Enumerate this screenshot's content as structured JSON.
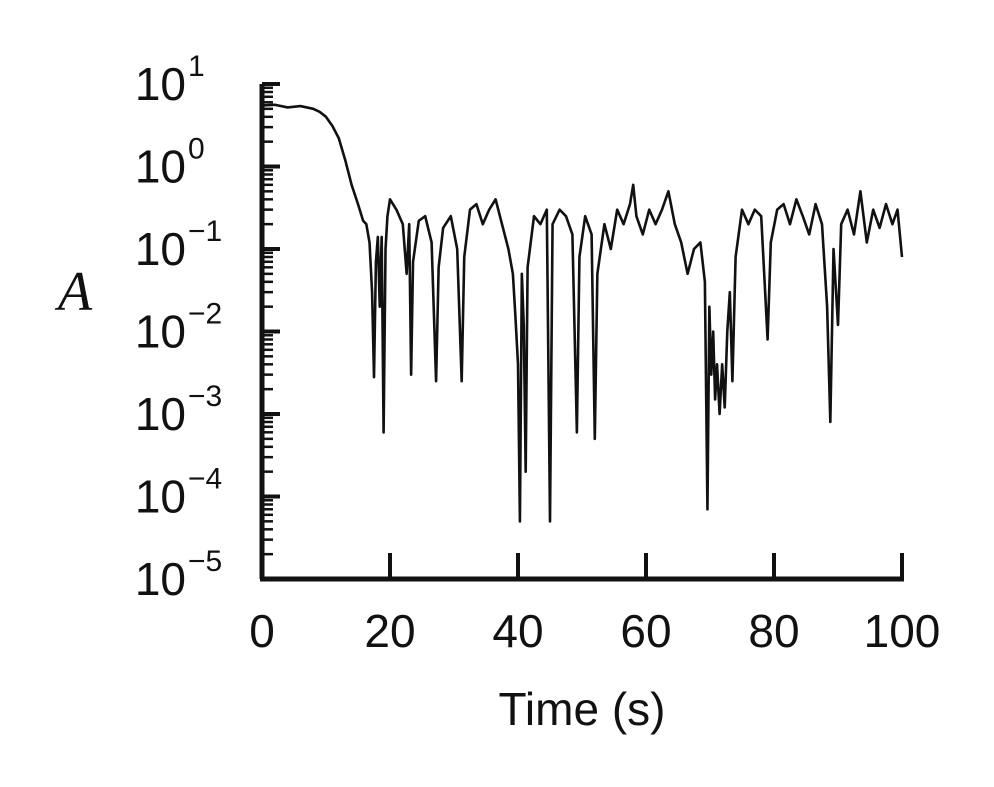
{
  "chart_data": {
    "type": "line",
    "title": "",
    "xlabel": "Time (s)",
    "ylabel": "A",
    "xlim": [
      0,
      100
    ],
    "ylim_log10": [
      -5,
      1
    ],
    "yscale": "log",
    "grid": false,
    "x_ticks": [
      {
        "value": 0,
        "label": "0"
      },
      {
        "value": 20,
        "label": "20"
      },
      {
        "value": 40,
        "label": "40"
      },
      {
        "value": 60,
        "label": "60"
      },
      {
        "value": 80,
        "label": "80"
      },
      {
        "value": 100,
        "label": "100"
      }
    ],
    "y_ticks": [
      {
        "exp": 1,
        "base": "10",
        "exponent": "1"
      },
      {
        "exp": 0,
        "base": "10",
        "exponent": "0"
      },
      {
        "exp": -1,
        "base": "10",
        "exponent": "−1"
      },
      {
        "exp": -2,
        "base": "10",
        "exponent": "−2"
      },
      {
        "exp": -3,
        "base": "10",
        "exponent": "−3"
      },
      {
        "exp": -4,
        "base": "10",
        "exponent": "−4"
      },
      {
        "exp": -5,
        "base": "10",
        "exponent": "−5"
      }
    ],
    "series": [
      {
        "color": "#111111",
        "points": [
          [
            0,
            5.5
          ],
          [
            2,
            5.6
          ],
          [
            4,
            5.2
          ],
          [
            6,
            5.4
          ],
          [
            8,
            5.0
          ],
          [
            9,
            4.6
          ],
          [
            10,
            4.0
          ],
          [
            11,
            3.1
          ],
          [
            12,
            2.2
          ],
          [
            13,
            1.2
          ],
          [
            14,
            0.6
          ],
          [
            15,
            0.35
          ],
          [
            15.8,
            0.22
          ],
          [
            16.3,
            0.2
          ],
          [
            16.8,
            0.12
          ],
          [
            17.2,
            0.03
          ],
          [
            17.5,
            0.0028
          ],
          [
            17.8,
            0.07
          ],
          [
            18.1,
            0.14
          ],
          [
            18.4,
            0.02
          ],
          [
            18.7,
            0.14
          ],
          [
            19.0,
            0.0006
          ],
          [
            19.3,
            0.1
          ],
          [
            19.6,
            0.25
          ],
          [
            20,
            0.4
          ],
          [
            21,
            0.3
          ],
          [
            22,
            0.2
          ],
          [
            22.6,
            0.05
          ],
          [
            23.0,
            0.2
          ],
          [
            23.3,
            0.003
          ],
          [
            23.6,
            0.07
          ],
          [
            24.5,
            0.22
          ],
          [
            25.5,
            0.25
          ],
          [
            26.5,
            0.12
          ],
          [
            27.2,
            0.0025
          ],
          [
            27.6,
            0.06
          ],
          [
            28.3,
            0.18
          ],
          [
            29.5,
            0.25
          ],
          [
            30.5,
            0.1
          ],
          [
            31.2,
            0.0025
          ],
          [
            31.6,
            0.08
          ],
          [
            32.5,
            0.3
          ],
          [
            33.5,
            0.35
          ],
          [
            34.5,
            0.2
          ],
          [
            35.5,
            0.3
          ],
          [
            36.5,
            0.4
          ],
          [
            37.5,
            0.2
          ],
          [
            38.5,
            0.1
          ],
          [
            39.2,
            0.05
          ],
          [
            39.6,
            0.015
          ],
          [
            40.0,
            0.004
          ],
          [
            40.3,
            5e-05
          ],
          [
            40.6,
            0.05
          ],
          [
            40.9,
            0.012
          ],
          [
            41.2,
            0.0002
          ],
          [
            41.5,
            0.06
          ],
          [
            42.5,
            0.25
          ],
          [
            43.5,
            0.2
          ],
          [
            44.5,
            0.3
          ],
          [
            45.0,
            5e-05
          ],
          [
            45.4,
            0.2
          ],
          [
            46.5,
            0.3
          ],
          [
            47.5,
            0.25
          ],
          [
            48.5,
            0.15
          ],
          [
            49.2,
            0.0006
          ],
          [
            49.6,
            0.08
          ],
          [
            50.5,
            0.25
          ],
          [
            51.5,
            0.15
          ],
          [
            52.0,
            0.0005
          ],
          [
            52.4,
            0.05
          ],
          [
            53.5,
            0.2
          ],
          [
            54.5,
            0.1
          ],
          [
            55.5,
            0.3
          ],
          [
            56.5,
            0.2
          ],
          [
            57.5,
            0.35
          ],
          [
            58.0,
            0.6
          ],
          [
            58.5,
            0.25
          ],
          [
            59.5,
            0.15
          ],
          [
            60.5,
            0.3
          ],
          [
            61.5,
            0.2
          ],
          [
            62.5,
            0.3
          ],
          [
            63.5,
            0.5
          ],
          [
            64.5,
            0.2
          ],
          [
            65.5,
            0.12
          ],
          [
            66.5,
            0.05
          ],
          [
            67.5,
            0.1
          ],
          [
            68.5,
            0.12
          ],
          [
            69.2,
            0.04
          ],
          [
            69.6,
            7e-05
          ],
          [
            69.9,
            0.02
          ],
          [
            70.2,
            0.003
          ],
          [
            70.5,
            0.01
          ],
          [
            70.8,
            0.0015
          ],
          [
            71.1,
            0.004
          ],
          [
            71.5,
            0.001
          ],
          [
            71.9,
            0.004
          ],
          [
            72.3,
            0.0012
          ],
          [
            72.7,
            0.01
          ],
          [
            73.1,
            0.03
          ],
          [
            73.5,
            0.0025
          ],
          [
            74.0,
            0.08
          ],
          [
            75.0,
            0.3
          ],
          [
            76.0,
            0.2
          ],
          [
            77.0,
            0.3
          ],
          [
            78.0,
            0.25
          ],
          [
            79.0,
            0.008
          ],
          [
            79.5,
            0.12
          ],
          [
            80.5,
            0.3
          ],
          [
            81.5,
            0.35
          ],
          [
            82.5,
            0.2
          ],
          [
            83.5,
            0.4
          ],
          [
            84.5,
            0.25
          ],
          [
            85.5,
            0.15
          ],
          [
            86.5,
            0.35
          ],
          [
            87.5,
            0.2
          ],
          [
            88.3,
            0.02
          ],
          [
            88.8,
            0.0008
          ],
          [
            89.3,
            0.1
          ],
          [
            90.0,
            0.012
          ],
          [
            90.5,
            0.2
          ],
          [
            91.5,
            0.3
          ],
          [
            92.5,
            0.15
          ],
          [
            93.5,
            0.5
          ],
          [
            94.5,
            0.12
          ],
          [
            95.5,
            0.3
          ],
          [
            96.5,
            0.18
          ],
          [
            97.5,
            0.35
          ],
          [
            98.5,
            0.2
          ],
          [
            99.3,
            0.3
          ],
          [
            100,
            0.08
          ]
        ]
      }
    ]
  }
}
